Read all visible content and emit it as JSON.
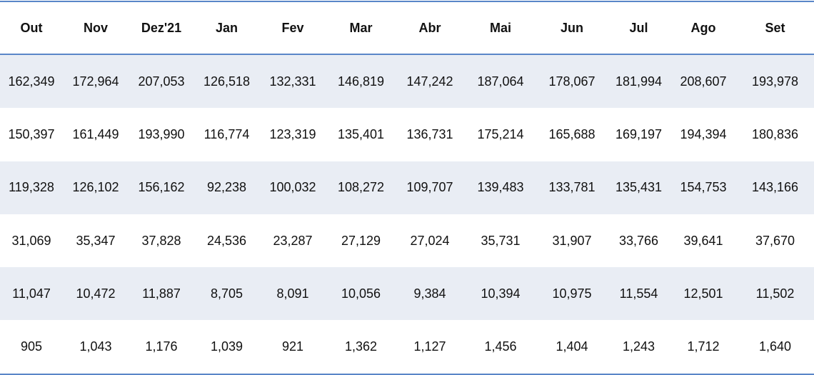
{
  "table": {
    "header": [
      "Out",
      "Nov",
      "Dez'21",
      "Jan",
      "Fev",
      "Mar",
      "Abr",
      "Mai",
      "Jun",
      "Jul",
      "Ago",
      "Set"
    ],
    "rows": [
      [
        "162,349",
        "172,964",
        "207,053",
        "126,518",
        "132,331",
        "146,819",
        "147,242",
        "187,064",
        "178,067",
        "181,994",
        "208,607",
        "193,978"
      ],
      [
        "150,397",
        "161,449",
        "193,990",
        "116,774",
        "123,319",
        "135,401",
        "136,731",
        "175,214",
        "165,688",
        "169,197",
        "194,394",
        "180,836"
      ],
      [
        "119,328",
        "126,102",
        "156,162",
        "92,238",
        "100,032",
        "108,272",
        "109,707",
        "139,483",
        "133,781",
        "135,431",
        "154,753",
        "143,166"
      ],
      [
        "31,069",
        "35,347",
        "37,828",
        "24,536",
        "23,287",
        "27,129",
        "27,024",
        "35,731",
        "31,907",
        "33,766",
        "39,641",
        "37,670"
      ],
      [
        "11,047",
        "10,472",
        "11,887",
        "8,705",
        "8,091",
        "10,056",
        "9,384",
        "10,394",
        "10,975",
        "11,554",
        "12,501",
        "11,502"
      ],
      [
        "905",
        "1,043",
        "1,176",
        "1,039",
        "921",
        "1,362",
        "1,127",
        "1,456",
        "1,404",
        "1,243",
        "1,712",
        "1,640"
      ]
    ]
  }
}
